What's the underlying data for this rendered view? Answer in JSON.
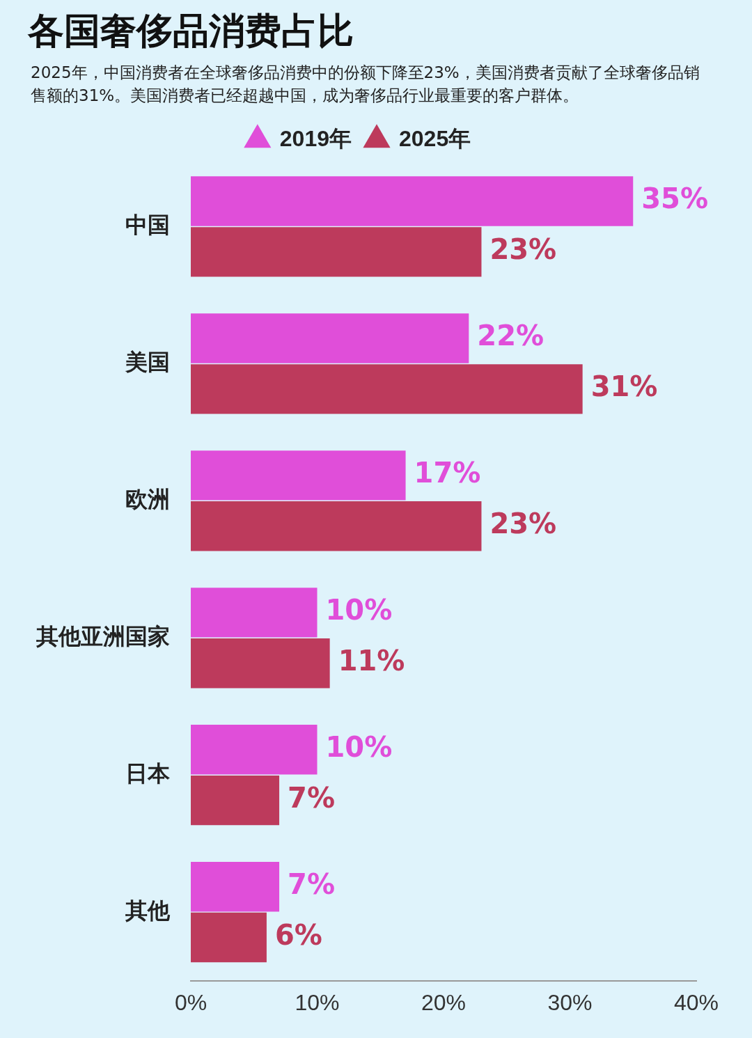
{
  "chart_data": {
    "type": "bar",
    "orientation": "horizontal",
    "title": "各国奢侈品消费占比",
    "subtitle": "2025年，中国消费者在全球奢侈品消费中的份额下降至23%，美国消费者贡献了全球奢侈品销售额的31%。美国消费者已经超越中国，成为奢侈品行业最重要的客户群体。",
    "categories": [
      "中国",
      "美国",
      "欧洲",
      "其他亚洲国家",
      "日本",
      "其他"
    ],
    "series": [
      {
        "name": "2019年",
        "color": "#e04ed9",
        "values": [
          35,
          22,
          17,
          10,
          10,
          7
        ],
        "value_labels": [
          "35%",
          "22%",
          "17%",
          "10%",
          "10%",
          "7%"
        ]
      },
      {
        "name": "2025年",
        "color": "#bd3a5c",
        "values": [
          23,
          31,
          23,
          11,
          7,
          6
        ],
        "value_labels": [
          "23%",
          "31%",
          "23%",
          "11%",
          "7%",
          "6%"
        ]
      }
    ],
    "xlim": [
      0,
      40
    ],
    "xticks": [
      {
        "value": 0,
        "label": "0%"
      },
      {
        "value": 10,
        "label": "10%"
      },
      {
        "value": 20,
        "label": "20%"
      },
      {
        "value": 30,
        "label": "30%"
      },
      {
        "value": 40,
        "label": "40%"
      }
    ],
    "legend": "top",
    "grid": false
  }
}
